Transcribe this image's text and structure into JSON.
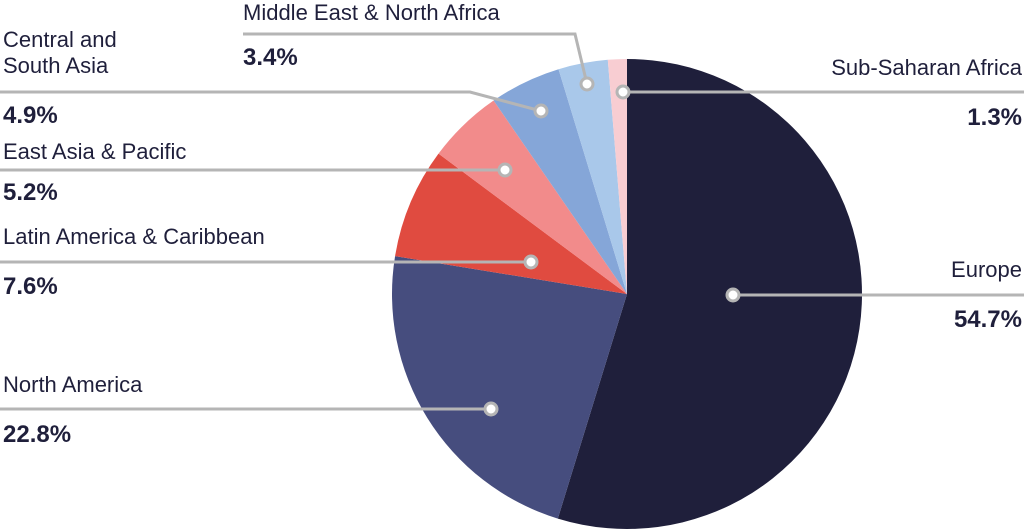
{
  "chart_data": {
    "type": "pie",
    "categories": [
      "Europe",
      "North America",
      "Latin America & Caribbean",
      "East Asia & Pacific",
      "Central and South Asia",
      "Middle East & North Africa",
      "Sub-Saharan Africa"
    ],
    "values": [
      54.7,
      22.8,
      7.6,
      5.2,
      4.9,
      3.4,
      1.3
    ],
    "value_labels": [
      "54.7%",
      "22.8%",
      "7.6%",
      "5.2%",
      "4.9%",
      "3.4%",
      "1.3%"
    ],
    "colors": [
      "#1f1f3b",
      "#464d7e",
      "#e04b40",
      "#f28b8b",
      "#85a6d8",
      "#a9c8ea",
      "#f8cdd2"
    ]
  }
}
